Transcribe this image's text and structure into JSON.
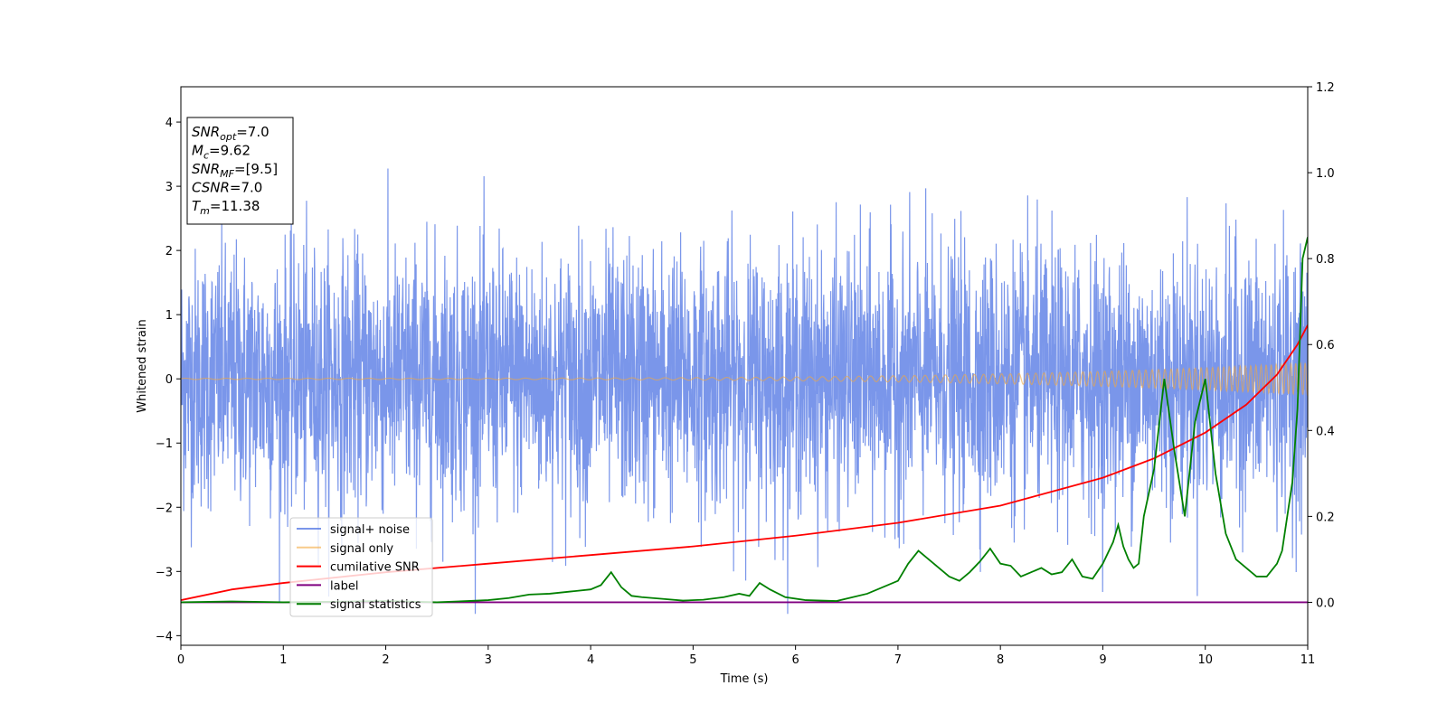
{
  "chart_data": {
    "type": "line",
    "title": "",
    "xlabel": "Time (s)",
    "ylabel": "Whitened strain",
    "xlim": [
      0,
      11
    ],
    "ylim": [
      -4.15,
      4.55
    ],
    "y2lim": [
      -0.1,
      1.2
    ],
    "xticks": [
      "0",
      "1",
      "2",
      "3",
      "4",
      "5",
      "6",
      "7",
      "8",
      "9",
      "10",
      "11"
    ],
    "yticks": [
      "−4",
      "−3",
      "−2",
      "−1",
      "0",
      "1",
      "2",
      "3",
      "4"
    ],
    "y2ticks": [
      "0.0",
      "0.2",
      "0.4",
      "0.6",
      "0.8",
      "1.0",
      "1.2"
    ],
    "grid": false,
    "legend_position": "lower-left",
    "annotation": {
      "lines": [
        {
          "base": "SNR",
          "sub": "opt",
          "rest": "=7.0"
        },
        {
          "base": "M",
          "sub": "c",
          "rest": "=9.62"
        },
        {
          "base": "SNR",
          "sub": "MF",
          "rest": "=[9.5]"
        },
        {
          "base": "CSNR",
          "sub": "",
          "rest": "=7.0"
        },
        {
          "base": "T",
          "sub": "m",
          "rest": "=11.38"
        }
      ]
    },
    "series": [
      {
        "name": "signal+ noise",
        "axis": "left",
        "color": "#4169e1",
        "style": "noise",
        "std": 1.0,
        "max": 4.17,
        "min": -3.66
      },
      {
        "name": "signal only",
        "axis": "left",
        "color": "#f4a83c",
        "style": "chirp",
        "amplitude_start": 0.01,
        "amplitude_end": 0.25,
        "f_start": 5,
        "f_end": 22
      },
      {
        "name": "cumilative SNR",
        "axis": "right",
        "color": "#ff0000",
        "x": [
          0,
          0.5,
          1,
          2,
          3,
          4,
          5,
          6,
          7,
          8,
          9,
          9.5,
          10,
          10.4,
          10.7,
          10.9,
          11
        ],
        "y": [
          0.005,
          0.03,
          0.045,
          0.07,
          0.09,
          0.11,
          0.13,
          0.155,
          0.185,
          0.225,
          0.29,
          0.335,
          0.395,
          0.46,
          0.53,
          0.6,
          0.645
        ]
      },
      {
        "name": "label",
        "axis": "right",
        "color": "#800080",
        "x": [
          0,
          11
        ],
        "y": [
          0,
          0
        ]
      },
      {
        "name": "signal statistics",
        "axis": "right",
        "color": "#008000",
        "x": [
          0,
          0.5,
          1,
          2,
          2.5,
          3,
          3.2,
          3.4,
          3.6,
          3.8,
          4,
          4.1,
          4.2,
          4.3,
          4.4,
          4.5,
          4.7,
          4.9,
          5.1,
          5.3,
          5.45,
          5.55,
          5.65,
          5.75,
          5.9,
          6.1,
          6.4,
          6.7,
          6.9,
          7.0,
          7.1,
          7.2,
          7.3,
          7.4,
          7.5,
          7.6,
          7.7,
          7.8,
          7.9,
          8.0,
          8.1,
          8.2,
          8.3,
          8.4,
          8.5,
          8.6,
          8.7,
          8.8,
          8.9,
          9.0,
          9.1,
          9.15,
          9.2,
          9.25,
          9.3,
          9.35,
          9.4,
          9.5,
          9.6,
          9.7,
          9.8,
          9.9,
          10.0,
          10.1,
          10.2,
          10.3,
          10.4,
          10.5,
          10.6,
          10.7,
          10.75,
          10.8,
          10.85,
          10.9,
          10.95,
          11.0
        ],
        "y": [
          0.0,
          0.002,
          0.0,
          0.003,
          0.0,
          0.005,
          0.01,
          0.018,
          0.02,
          0.025,
          0.03,
          0.04,
          0.07,
          0.035,
          0.015,
          0.012,
          0.008,
          0.004,
          0.006,
          0.012,
          0.02,
          0.015,
          0.045,
          0.03,
          0.012,
          0.005,
          0.003,
          0.02,
          0.04,
          0.05,
          0.09,
          0.12,
          0.1,
          0.08,
          0.06,
          0.05,
          0.07,
          0.095,
          0.125,
          0.09,
          0.085,
          0.06,
          0.07,
          0.08,
          0.065,
          0.07,
          0.1,
          0.06,
          0.055,
          0.09,
          0.14,
          0.18,
          0.13,
          0.1,
          0.08,
          0.09,
          0.2,
          0.31,
          0.52,
          0.35,
          0.2,
          0.42,
          0.52,
          0.3,
          0.16,
          0.1,
          0.08,
          0.06,
          0.06,
          0.09,
          0.12,
          0.2,
          0.28,
          0.45,
          0.8,
          0.85
        ]
      }
    ]
  }
}
